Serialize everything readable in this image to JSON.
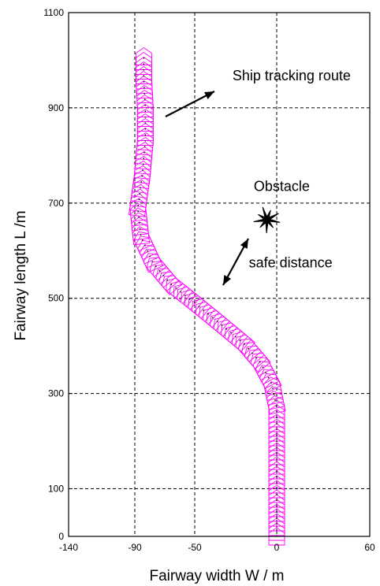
{
  "chart_data": {
    "type": "line",
    "title": "",
    "xlabel": "Fairway width  W   / m",
    "ylabel": "Fairway length  L  /m",
    "xlim": [
      -140,
      60
    ],
    "ylim": [
      0,
      1100
    ],
    "x_ticks": [
      "-140",
      "-90",
      "-50",
      "0",
      "60"
    ],
    "y_ticks": [
      "0",
      "100",
      "300",
      "500",
      "700",
      "900",
      "1100"
    ],
    "x_gridlines": [
      -90,
      -50,
      0
    ],
    "y_gridlines": [
      100,
      300,
      500,
      700,
      900
    ],
    "grid": "dashed",
    "series": [
      {
        "color": "#ff00ff",
        "points": [
          [
            0,
            0
          ],
          [
            0,
            100
          ],
          [
            0,
            200
          ],
          [
            0,
            270
          ],
          [
            -3,
            320
          ],
          [
            -10,
            365
          ],
          [
            -20,
            405
          ],
          [
            -34,
            445
          ],
          [
            -50,
            490
          ],
          [
            -66,
            530
          ],
          [
            -78,
            575
          ],
          [
            -86,
            630
          ],
          [
            -88,
            690
          ],
          [
            -85,
            760
          ],
          [
            -83,
            830
          ],
          [
            -83,
            900
          ],
          [
            -84,
            960
          ],
          [
            -84,
            1010
          ]
        ]
      }
    ],
    "obstacle": {
      "x": -6,
      "y": 665
    },
    "annotations": [
      {
        "text": "Ship tracking route",
        "x": -27,
        "y": 958
      },
      {
        "text": "Obstacle",
        "x": -14,
        "y": 725
      },
      {
        "text": "safe distance",
        "x": -17,
        "y": 565
      }
    ]
  },
  "colors": {
    "ship": "#ff00ff",
    "axes": "#000000",
    "background": "#ffffff"
  }
}
